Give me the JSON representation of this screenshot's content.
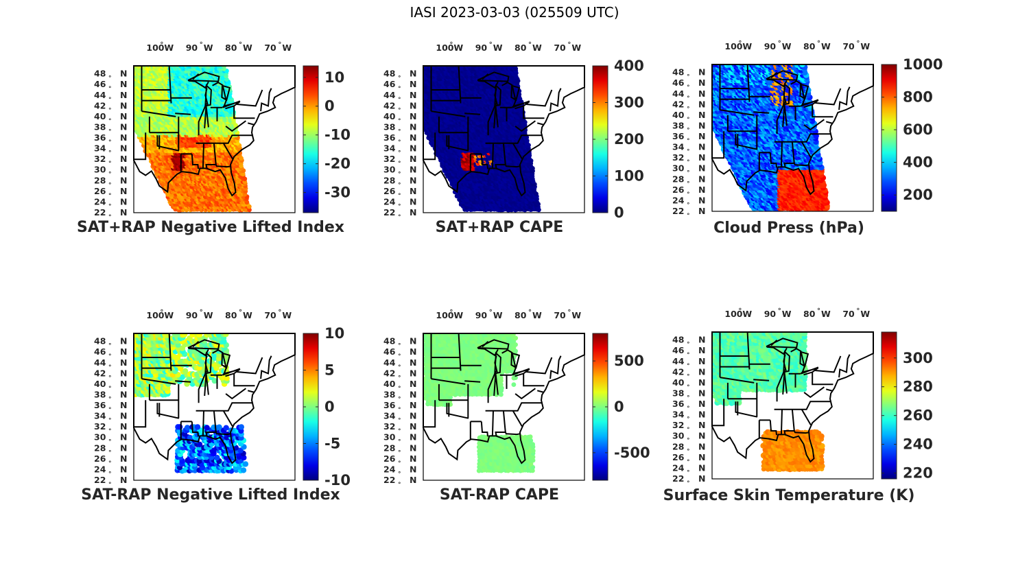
{
  "title": "IASI 2023-03-03 (025509 UTC)",
  "map": {
    "lon_labels": [
      "100",
      "90",
      "80",
      "70"
    ],
    "lon_suffix": "W",
    "lat_labels": [
      "48",
      "46",
      "44",
      "42",
      "40",
      "38",
      "36",
      "34",
      "32",
      "30",
      "28",
      "26",
      "24",
      "22"
    ],
    "lat_suffix": "N",
    "degree_mark": "°"
  },
  "panels": [
    {
      "title": "SAT+RAP Negative Lifted Index",
      "colorbar_ticks": [
        "10",
        "0",
        "-10",
        "-20",
        "-30"
      ],
      "colorbar_range": [
        -37,
        14
      ],
      "field": "nli"
    },
    {
      "title": "SAT+RAP CAPE",
      "colorbar_ticks": [
        "400",
        "300",
        "200",
        "100",
        "0"
      ],
      "colorbar_range": [
        0,
        400
      ],
      "field": "cape"
    },
    {
      "title": "Cloud Press (hPa)",
      "colorbar_ticks": [
        "1000",
        "800",
        "600",
        "400",
        "200"
      ],
      "colorbar_range": [
        100,
        1000
      ],
      "field": "cloud"
    },
    {
      "title": "SAT-RAP Negative Lifted Index",
      "colorbar_ticks": [
        "10",
        "5",
        "0",
        "-5",
        "-10"
      ],
      "colorbar_range": [
        -10,
        10
      ],
      "field": "dnli"
    },
    {
      "title": "SAT-RAP CAPE",
      "colorbar_ticks": [
        "500",
        "0",
        "-500"
      ],
      "colorbar_range": [
        -800,
        800
      ],
      "field": "dcape"
    },
    {
      "title": "Surface Skin Temperature (K)",
      "colorbar_ticks": [
        "300",
        "280",
        "260",
        "240",
        "220"
      ],
      "colorbar_range": [
        216,
        318
      ],
      "field": "skin"
    }
  ],
  "colors": {
    "colormap": "jet",
    "ocean_background": "#ffffff",
    "boundaries": "#000000"
  }
}
